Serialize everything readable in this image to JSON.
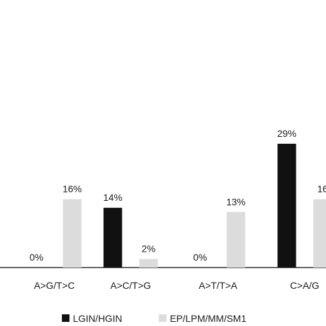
{
  "chart_data": {
    "type": "bar",
    "categories": [
      "A>G/T>C",
      "A>C/T>G",
      "A>T/T>A",
      "C>A/G"
    ],
    "series": [
      {
        "name": "LGIN/HGIN",
        "values": [
          0,
          14,
          0,
          29
        ],
        "labels": [
          "0%",
          "14%",
          "0%",
          "29%"
        ],
        "color": "#111111"
      },
      {
        "name": "EP/LPM/MM/SM1",
        "values": [
          16,
          2,
          13,
          16
        ],
        "labels": [
          "16%",
          "2%",
          "13%",
          "16"
        ],
        "color": "#dcdcdc"
      }
    ],
    "title": "",
    "xlabel": "",
    "ylabel": "",
    "ylim": [
      0,
      30
    ],
    "grid": false,
    "legend": "bottom",
    "axis_color": "#333333"
  }
}
